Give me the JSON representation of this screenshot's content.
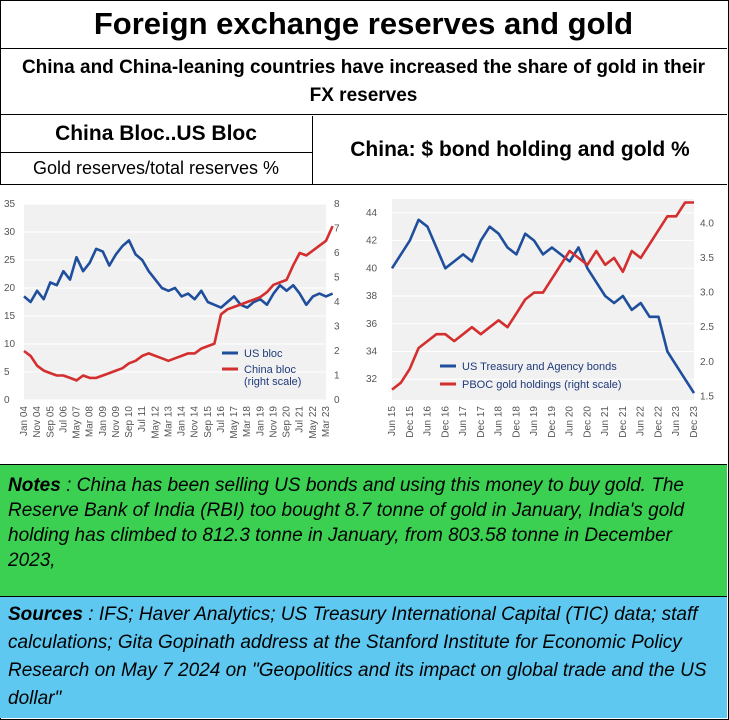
{
  "header": {
    "title": "Foreign exchange reserves and gold",
    "subtitle": "China and China-leaning countries have increased the share of gold in their FX reserves",
    "left_title": "China Bloc..US Bloc",
    "left_subtitle": "Gold reserves/total reserves %",
    "right_title": "China: $ bond holding and gold %"
  },
  "notes": {
    "label": "Notes",
    "text": " : China has been selling US bonds and using this money to buy gold. The Reserve Bank of India (RBI) too bought 8.7 tonne of gold in January, India's gold holding has climbed to 812.3 tonne in January, from 803.58 tonne in December 2023,"
  },
  "sources": {
    "label": "Sources",
    "text": " : IFS; Haver Analytics; US Treasury International Capital (TIC) data; staff calculations; Gita Gopinath address at the Stanford Institute for Economic Policy Research on May 7 2024 on \"Geopolitics and its impact on global trade and the US dollar\""
  },
  "chart_data": [
    {
      "type": "line",
      "xlabels": [
        "Jan 04",
        "Nov 04",
        "Sep 05",
        "Jul 06",
        "May 07",
        "Mar 08",
        "Jan 09",
        "Nov 09",
        "Sep 10",
        "Jul 11",
        "May 12",
        "Mar 13",
        "Jan 14",
        "Nov 14",
        "Sep 15",
        "Jul 16",
        "May 17",
        "Mar 18",
        "Jan 19",
        "Nov 19",
        "Sep 20",
        "Jul 21",
        "May 22",
        "Mar 23"
      ],
      "yleft": {
        "ticks": [
          0,
          5,
          10,
          15,
          20,
          25,
          30,
          35
        ],
        "range": [
          0,
          35
        ]
      },
      "yright": {
        "ticks": [
          0,
          1,
          2,
          3,
          4,
          5,
          6,
          7,
          8
        ],
        "range": [
          0,
          8
        ]
      },
      "series": [
        {
          "name": "US bloc",
          "axis": "left",
          "color": "#1f4e9c",
          "x": [
            0,
            0.5,
            1,
            1.5,
            2,
            2.5,
            3,
            3.5,
            4,
            4.5,
            5,
            5.5,
            6,
            6.5,
            7,
            7.5,
            8,
            8.5,
            9,
            9.5,
            10,
            10.5,
            11,
            11.5,
            12,
            12.5,
            13,
            13.5,
            14,
            14.5,
            15,
            15.5,
            16,
            16.5,
            17,
            17.5,
            18,
            18.5,
            19,
            19.5,
            20,
            20.5,
            21,
            21.5,
            22,
            22.5,
            23,
            23.5
          ],
          "y": [
            18.5,
            17.5,
            19.5,
            18,
            21,
            20.5,
            23,
            21.5,
            25.5,
            23,
            24.5,
            27,
            26.5,
            24,
            26,
            27.5,
            28.5,
            26,
            25,
            23,
            21.5,
            20,
            19.5,
            20,
            18.5,
            19,
            18,
            19.5,
            17.5,
            17,
            16.5,
            17.5,
            18.5,
            17,
            16.5,
            17.5,
            18,
            17,
            19,
            20.5,
            19.5,
            20.5,
            19,
            17,
            18.5,
            19,
            18.5,
            19
          ]
        },
        {
          "name": "China bloc",
          "sublabel": "(right scale)",
          "axis": "right",
          "color": "#d32f2f",
          "x": [
            0,
            0.5,
            1,
            1.5,
            2,
            2.5,
            3,
            3.5,
            4,
            4.5,
            5,
            5.5,
            6,
            6.5,
            7,
            7.5,
            8,
            8.5,
            9,
            9.5,
            10,
            10.5,
            11,
            11.5,
            12,
            12.5,
            13,
            13.5,
            14,
            14.5,
            15,
            15.5,
            16,
            16.5,
            17,
            17.5,
            18,
            18.5,
            19,
            19.5,
            20,
            20.5,
            21,
            21.5,
            22,
            22.5,
            23,
            23.5
          ],
          "y": [
            2.0,
            1.8,
            1.4,
            1.2,
            1.1,
            1.0,
            1.0,
            0.9,
            0.8,
            1.0,
            0.9,
            0.9,
            1.0,
            1.1,
            1.2,
            1.3,
            1.5,
            1.6,
            1.8,
            1.9,
            1.8,
            1.7,
            1.6,
            1.7,
            1.8,
            1.9,
            1.9,
            2.1,
            2.2,
            2.3,
            3.5,
            3.7,
            3.8,
            3.9,
            4.0,
            4.1,
            4.2,
            4.4,
            4.7,
            4.8,
            4.9,
            5.5,
            6.0,
            5.9,
            6.1,
            6.3,
            6.5,
            7.1
          ]
        }
      ]
    },
    {
      "type": "line",
      "xlabels": [
        "Jun 15",
        "Dec 15",
        "Jun 16",
        "Dec 16",
        "Jun 17",
        "Dec 17",
        "Jun 18",
        "Dec 18",
        "Jun 19",
        "Dec 19",
        "Jun 20",
        "Dec 20",
        "Jun 21",
        "Dec 21",
        "Jun 22",
        "Dec 22",
        "Jun 23",
        "Dec 23"
      ],
      "yleft": {
        "ticks": [
          32,
          34,
          36,
          38,
          40,
          42,
          44
        ],
        "range": [
          30.5,
          45
        ]
      },
      "yright": {
        "ticks": [
          1.5,
          2.0,
          2.5,
          3.0,
          3.5,
          4.0
        ],
        "range": [
          1.45,
          4.35
        ]
      },
      "series": [
        {
          "name": "US Treasury and Agency bonds",
          "axis": "left",
          "color": "#1f4e9c",
          "x": [
            0,
            0.5,
            1,
            1.5,
            2,
            2.5,
            3,
            3.5,
            4,
            4.5,
            5,
            5.5,
            6,
            6.5,
            7,
            7.5,
            8,
            8.5,
            9,
            9.5,
            10,
            10.5,
            11,
            11.5,
            12,
            12.5,
            13,
            13.5,
            14,
            14.5,
            15,
            15.5,
            16,
            16.5,
            17
          ],
          "y": [
            40,
            41,
            42,
            43.5,
            43,
            41.5,
            40,
            40.5,
            41,
            40.5,
            42,
            43,
            42.5,
            41.5,
            41,
            42.5,
            42,
            41,
            41.5,
            41,
            40.5,
            41.5,
            40,
            39,
            38,
            37.5,
            38,
            37,
            37.5,
            36.5,
            36.5,
            34,
            33,
            32,
            31
          ]
        },
        {
          "name": "PBOC gold holdings (right scale)",
          "axis": "right",
          "color": "#d32f2f",
          "x": [
            0,
            0.5,
            1,
            1.5,
            2,
            2.5,
            3,
            3.5,
            4,
            4.5,
            5,
            5.5,
            6,
            6.5,
            7,
            7.5,
            8,
            8.5,
            9,
            9.5,
            10,
            10.5,
            11,
            11.5,
            12,
            12.5,
            13,
            13.5,
            14,
            14.5,
            15,
            15.5,
            16,
            16.5,
            17
          ],
          "y": [
            1.6,
            1.7,
            1.9,
            2.2,
            2.3,
            2.4,
            2.4,
            2.3,
            2.4,
            2.5,
            2.4,
            2.5,
            2.6,
            2.5,
            2.7,
            2.9,
            3.0,
            3.0,
            3.2,
            3.4,
            3.6,
            3.5,
            3.4,
            3.6,
            3.4,
            3.5,
            3.3,
            3.6,
            3.5,
            3.7,
            3.9,
            4.1,
            4.1,
            4.3,
            4.3
          ]
        }
      ]
    }
  ]
}
